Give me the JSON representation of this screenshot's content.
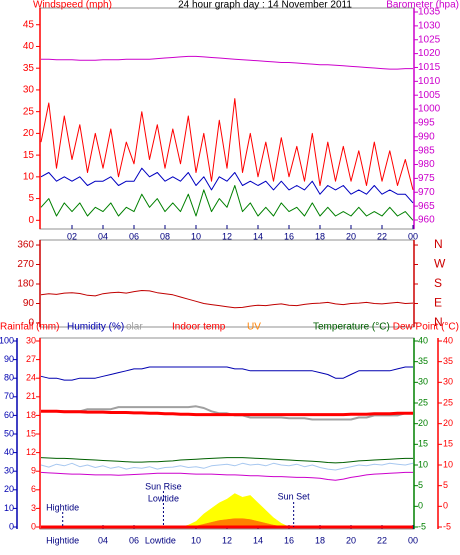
{
  "chart_data": [
    {
      "type": "line",
      "header": [
        {
          "text": "Windspeed (mph)",
          "color": "#ff0000"
        },
        {
          "text": "24 hour graph day : 14 November 2011",
          "color": "#000000"
        },
        {
          "text": "Barometer (hpa)",
          "color": "#cc00cc"
        }
      ],
      "x": [
        0,
        0.5,
        1,
        1.5,
        2,
        2.5,
        3,
        3.5,
        4,
        4.5,
        5,
        5.5,
        6,
        6.5,
        7,
        7.5,
        8,
        8.5,
        9,
        9.5,
        10,
        10.5,
        11,
        11.5,
        12,
        12.5,
        13,
        13.5,
        14,
        14.5,
        15,
        15.5,
        16,
        16.5,
        17,
        17.5,
        18,
        18.5,
        19,
        19.5,
        20,
        20.5,
        21,
        21.5,
        22,
        22.5,
        23,
        23.5,
        24
      ],
      "xlim": [
        0,
        24
      ],
      "xticks": [
        {
          "value": 2,
          "label": "02"
        },
        {
          "value": 4,
          "label": "04"
        },
        {
          "value": 6,
          "label": "06"
        },
        {
          "value": 8,
          "label": "08"
        },
        10,
        12,
        14,
        16,
        18,
        20,
        22,
        {
          "value": 24,
          "label": "00"
        }
      ],
      "ylim": [
        -2,
        50
      ],
      "yticks": [
        0,
        5,
        10,
        15,
        20,
        25,
        30,
        35,
        40,
        45
      ],
      "ycolor": "#ff0000",
      "y2lim": [
        956.75,
        1038.25
      ],
      "y2ticks": [
        960,
        965,
        970,
        975,
        980,
        985,
        990,
        995,
        1000,
        1005,
        1010,
        1015,
        1020,
        1025,
        1030,
        1035
      ],
      "y2color": "#cc00cc",
      "series": [
        {
          "color": "#ff0000",
          "values": [
            18,
            27,
            12,
            24,
            14,
            22,
            11,
            20,
            12,
            21,
            10,
            18,
            13,
            25,
            14,
            22,
            12,
            21,
            13,
            24,
            11,
            20,
            9,
            23,
            12,
            28,
            11,
            20,
            10,
            18,
            9,
            19,
            10,
            17,
            9,
            20,
            8,
            18,
            9,
            17,
            9,
            16,
            8,
            18,
            9,
            16,
            8,
            14,
            7
          ]
        },
        {
          "color": "#0000c0",
          "values": [
            10,
            11,
            9,
            10,
            9,
            10,
            8,
            9,
            9,
            10,
            8,
            9,
            9,
            12,
            10,
            11,
            9,
            10,
            9,
            11,
            8,
            10,
            7,
            10,
            9,
            11,
            8,
            9,
            8,
            9,
            7,
            9,
            7,
            8,
            7,
            9,
            6,
            8,
            7,
            8,
            6,
            7,
            6,
            8,
            6,
            7,
            6,
            6,
            4
          ]
        },
        {
          "color": "#008000",
          "values": [
            3,
            5,
            1,
            4,
            2,
            4,
            1,
            3,
            2,
            4,
            1,
            3,
            2,
            6,
            3,
            5,
            2,
            4,
            2,
            6,
            1,
            7,
            2,
            5,
            3,
            8,
            2,
            4,
            1,
            3,
            1,
            4,
            2,
            3,
            1,
            4,
            1,
            3,
            1,
            2,
            1,
            3,
            1,
            2,
            1,
            3,
            1,
            2,
            0
          ]
        },
        {
          "color": "#cc00cc",
          "axis": "y2",
          "values": [
            1018,
            1018,
            1017.8,
            1017.8,
            1017.8,
            1017.6,
            1017.6,
            1017.6,
            1017.8,
            1017.8,
            1017.8,
            1018,
            1018,
            1018,
            1018,
            1018.2,
            1018.4,
            1018.6,
            1018.8,
            1019,
            1019,
            1018.8,
            1018.6,
            1018.4,
            1018.2,
            1018,
            1017.8,
            1017.6,
            1017.4,
            1017.2,
            1017,
            1016.8,
            1016.8,
            1016.6,
            1016.4,
            1016.2,
            1016,
            1016,
            1015.8,
            1015.6,
            1015.4,
            1015.2,
            1015,
            1014.8,
            1014.6,
            1014.4,
            1014.4,
            1014.6,
            1014.6
          ]
        }
      ]
    },
    {
      "type": "line",
      "x": [
        0,
        0.5,
        1,
        1.5,
        2,
        2.5,
        3,
        3.5,
        4,
        4.5,
        5,
        5.5,
        6,
        6.5,
        7,
        7.5,
        8,
        8.5,
        9,
        9.5,
        10,
        10.5,
        11,
        11.5,
        12,
        12.5,
        13,
        13.5,
        14,
        14.5,
        15,
        15.5,
        16,
        16.5,
        17,
        17.5,
        18,
        18.5,
        19,
        19.5,
        20,
        20.5,
        21,
        21.5,
        22,
        22.5,
        23,
        23.5,
        24
      ],
      "xlim": [
        0,
        24
      ],
      "ylim": [
        -14,
        374
      ],
      "yticks": [
        0,
        90,
        180,
        270,
        360
      ],
      "ycolor": "#cc0000",
      "y2lim": [
        -14,
        374
      ],
      "y2ticks": [
        {
          "value": 360,
          "label": "N"
        },
        {
          "value": 270,
          "label": "W"
        },
        {
          "value": 180,
          "label": "S"
        },
        {
          "value": 90,
          "label": "E"
        },
        {
          "value": 0,
          "label": "N"
        }
      ],
      "y2color": "#cc0000",
      "series": [
        {
          "color": "#c00000",
          "values": [
            130,
            135,
            132,
            138,
            140,
            136,
            128,
            125,
            135,
            140,
            142,
            138,
            145,
            150,
            148,
            140,
            135,
            130,
            120,
            110,
            100,
            90,
            85,
            80,
            75,
            70,
            72,
            78,
            82,
            80,
            85,
            88,
            82,
            80,
            86,
            90,
            92,
            95,
            88,
            85,
            90,
            92,
            95,
            90,
            88,
            92,
            95,
            90,
            92
          ]
        }
      ]
    },
    {
      "type": "line",
      "header": [
        {
          "text": "Rainfall (mm)",
          "color": "#ff0000"
        },
        {
          "text": "Humidity (%)",
          "color": "#0000b0"
        },
        {
          "text": "olar",
          "color": "#a0a0a0"
        },
        {
          "text": "Indoor temp",
          "color": "#ff0000"
        },
        {
          "text": "UV",
          "color": "#ff8000"
        },
        {
          "text": "Temperature (°C)",
          "color": "#006000"
        },
        {
          "text": "Dew Point (°C)",
          "color": "#ff0000"
        }
      ],
      "x": [
        0,
        0.5,
        1,
        1.5,
        2,
        2.5,
        3,
        3.5,
        4,
        4.5,
        5,
        5.5,
        6,
        6.5,
        7,
        7.5,
        8,
        8.5,
        9,
        9.5,
        10,
        10.5,
        11,
        11.5,
        12,
        12.5,
        13,
        13.5,
        14,
        14.5,
        15,
        15.5,
        16,
        16.5,
        17,
        17.5,
        18,
        18.5,
        19,
        19.5,
        20,
        20.5,
        21,
        21.5,
        22,
        22.5,
        23,
        23.5,
        24
      ],
      "xlim": [
        0,
        24
      ],
      "xticks": [
        {
          "value": 4,
          "label": "04"
        },
        {
          "value": 6,
          "label": "06"
        },
        10,
        12,
        14,
        16,
        18,
        20,
        22,
        {
          "value": 24,
          "label": "00"
        }
      ],
      "ylim": [
        0,
        100
      ],
      "yticks": [
        0,
        10,
        20,
        30,
        40,
        50,
        60,
        70,
        80,
        90,
        100
      ],
      "ycolor": "#0000b0",
      "y3lim": [
        0,
        30
      ],
      "y3ticks": [
        0,
        3,
        6,
        9,
        12,
        15,
        18,
        21,
        24,
        27,
        30
      ],
      "y3color": "#ff0000",
      "y2lim": [
        -5,
        40
      ],
      "y2ticks": [
        -5,
        0,
        5,
        10,
        15,
        20,
        25,
        30,
        35,
        40
      ],
      "y2color": "#008000",
      "y4lim": [
        -5,
        40
      ],
      "y4ticks": [
        -5,
        0,
        5,
        10,
        15,
        20,
        25,
        30,
        35,
        40
      ],
      "y4color": "#ff0000",
      "series": [
        {
          "color": "#ffff00",
          "fill": true,
          "values": [
            0,
            0,
            0,
            0,
            0,
            0,
            0,
            0,
            0,
            0,
            0,
            0,
            0,
            0,
            0,
            0,
            0,
            0,
            0,
            1,
            3,
            7,
            10,
            13,
            15,
            18,
            16,
            17,
            13,
            9,
            5,
            2,
            0,
            0,
            0,
            0,
            0,
            0,
            0,
            0,
            0,
            0,
            0,
            0,
            0,
            0,
            0,
            0,
            0
          ]
        },
        {
          "color": "#ff8000",
          "fill": true,
          "values": [
            0,
            0,
            0,
            0,
            0,
            0,
            0,
            0,
            0,
            0,
            0,
            0,
            0,
            0,
            0,
            0,
            0,
            0,
            0,
            0,
            0.5,
            1.5,
            2.5,
            3.5,
            4,
            4.5,
            4.5,
            4,
            3,
            2,
            1,
            0.3,
            0,
            0,
            0,
            0,
            0,
            0,
            0,
            0,
            0,
            0,
            0,
            0,
            0,
            0,
            0,
            0,
            0
          ]
        },
        {
          "color": "#a0a0a0",
          "axis": "y2",
          "width": 2,
          "values": [
            23,
            23,
            23,
            23,
            23,
            23,
            23.5,
            23.5,
            23.5,
            23.5,
            24,
            24,
            24,
            24,
            24,
            24,
            24,
            24,
            24,
            24,
            24.2,
            23.8,
            23,
            22.5,
            22.5,
            22,
            22,
            21.5,
            21.5,
            21.5,
            21.5,
            21.5,
            21.3,
            21.3,
            21.3,
            21,
            21,
            21,
            21,
            21,
            21,
            21.5,
            21.5,
            22,
            22,
            22,
            22,
            22.5,
            22.5
          ]
        },
        {
          "color": "#ff0000",
          "axis": "y2",
          "width": 3,
          "values": [
            23,
            23,
            23,
            22.9,
            22.9,
            22.9,
            22.8,
            22.8,
            22.8,
            22.7,
            22.7,
            22.7,
            22.6,
            22.6,
            22.5,
            22.5,
            22.4,
            22.4,
            22.3,
            22.3,
            22.2,
            22.2,
            22.2,
            22.2,
            22.2,
            22.2,
            22.2,
            22.2,
            22.2,
            22.2,
            22.2,
            22.2,
            22.2,
            22.2,
            22.2,
            22.2,
            22.2,
            22.2,
            22.2,
            22.2,
            22.3,
            22.3,
            22.3,
            22.4,
            22.4,
            22.4,
            22.5,
            22.5,
            22.5
          ]
        },
        {
          "color": "#0000b0",
          "values": [
            81,
            80,
            80,
            79,
            79,
            80,
            80,
            80,
            81,
            82,
            83,
            84,
            85,
            85,
            86,
            86,
            86,
            86,
            86,
            86,
            86,
            86,
            86,
            86,
            86,
            85,
            85,
            84,
            84,
            84,
            84,
            84,
            84,
            84,
            84,
            84,
            83,
            82,
            80,
            80,
            82,
            84,
            84,
            84,
            84,
            84,
            85,
            86,
            86
          ]
        },
        {
          "color": "#a8c8f0",
          "axis": "y2",
          "values": [
            10,
            9.5,
            10.2,
            9.8,
            10.4,
            9.6,
            10,
            9.4,
            9.8,
            9.2,
            9.6,
            9,
            9.4,
            9.2,
            9.6,
            9,
            9.4,
            9.5,
            9.8,
            9.4,
            9.6,
            9.2,
            9.8,
            10,
            10.2,
            9.8,
            10.4,
            10,
            10.2,
            9.8,
            10.4,
            10,
            9.8,
            10.2,
            9.6,
            10,
            9.4,
            9,
            8.8,
            9.2,
            9.6,
            10,
            9.8,
            10.2,
            10,
            10.4,
            10.2,
            10,
            10.4
          ]
        },
        {
          "color": "#006000",
          "axis": "y2",
          "values": [
            11.8,
            11.7,
            11.6,
            11.6,
            11.5,
            11.4,
            11.3,
            11.2,
            11.1,
            11,
            10.9,
            10.8,
            10.7,
            10.7,
            10.8,
            10.8,
            10.9,
            11,
            11.2,
            11.3,
            11.4,
            11.5,
            11.6,
            11.7,
            11.8,
            11.8,
            11.8,
            11.7,
            11.6,
            11.5,
            11.4,
            11.3,
            11.2,
            11.1,
            11,
            10.9,
            10.8,
            10.6,
            10.5,
            10.6,
            10.8,
            11,
            11.1,
            11.2,
            11.3,
            11.4,
            11.5,
            11.6,
            11.6
          ]
        },
        {
          "color": "#cc00cc",
          "axis": "y4",
          "values": [
            8.2,
            8.1,
            8,
            7.9,
            7.8,
            7.8,
            7.7,
            7.6,
            7.6,
            7.6,
            7.5,
            7.6,
            7.7,
            7.8,
            7.9,
            8,
            8,
            8,
            8,
            7.9,
            7.8,
            7.8,
            7.8,
            7.7,
            7.6,
            7.6,
            7.5,
            7.4,
            7.4,
            7.3,
            7.2,
            7.2,
            7.1,
            7,
            7,
            6.9,
            6.8,
            6.5,
            6.3,
            6.6,
            7,
            7.3,
            7.6,
            7.8,
            7.9,
            8,
            8.1,
            8.2,
            8.2
          ]
        },
        {
          "color": "#ff0000",
          "axis": "y3",
          "width": 3,
          "values": [
            0,
            0,
            0,
            0,
            0,
            0,
            0,
            0,
            0,
            0,
            0,
            0,
            0,
            0,
            0,
            0,
            0,
            0,
            0,
            0,
            0,
            0,
            0,
            0,
            0,
            0,
            0,
            0,
            0,
            0,
            0,
            0,
            0,
            0,
            0,
            0,
            0,
            0,
            0,
            0,
            0,
            0,
            0,
            0,
            0,
            0,
            0,
            0,
            0
          ]
        }
      ],
      "annotations": [
        {
          "text": "Hightide",
          "x": 1.4
        },
        {
          "text": "Sun Rise",
          "x": 7.9
        },
        {
          "text": "Lowtide",
          "x": 7.9
        },
        {
          "text": "Sun Set",
          "x": 16.3
        }
      ],
      "bottom_labels": [
        {
          "text": "Hightide",
          "x": 1.4
        },
        {
          "text": "Lowtide",
          "x": 7.7
        }
      ]
    }
  ]
}
